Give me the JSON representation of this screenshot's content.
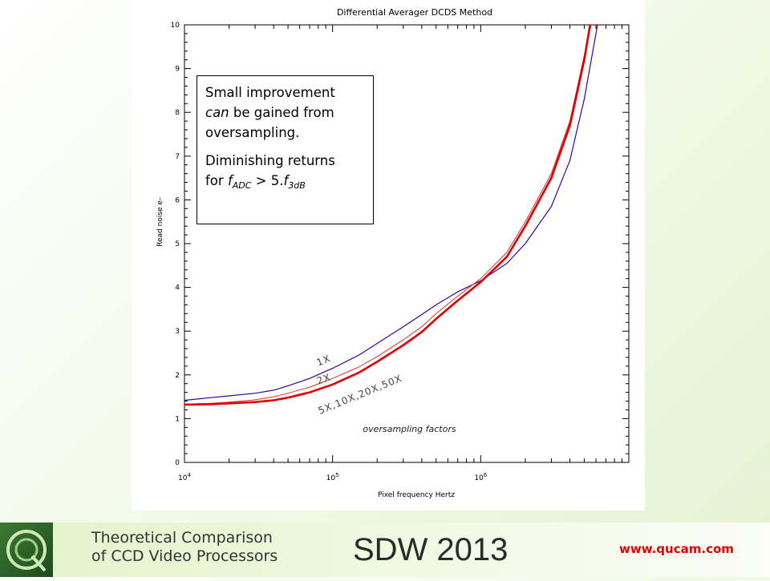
{
  "chart_data": {
    "type": "line",
    "title": "Differential Averager DCDS Method",
    "xlabel": "Pixel frequency Hertz",
    "ylabel": "Read noise e–",
    "x_scale": "log",
    "xlim": [
      10000,
      10000000
    ],
    "ylim": [
      0,
      10
    ],
    "x_ticks": [
      {
        "value": 10000,
        "base": "10",
        "exp": "4"
      },
      {
        "value": 100000,
        "base": "10",
        "exp": "5"
      },
      {
        "value": 1000000,
        "base": "10",
        "exp": "6"
      }
    ],
    "y_ticks": [
      "0",
      "1",
      "2",
      "3",
      "4",
      "5",
      "6",
      "7",
      "8",
      "9",
      "10"
    ],
    "grid": false,
    "series": [
      {
        "name": "1X",
        "color": "#3a00a0",
        "x": [
          10000,
          15000,
          20000,
          30000,
          40000,
          50000,
          70000,
          100000,
          150000,
          200000,
          300000,
          400000,
          500000,
          700000,
          1000000,
          1500000,
          2000000,
          3000000,
          4000000,
          5000000,
          6000000,
          6500000
        ],
        "y": [
          1.42,
          1.48,
          1.52,
          1.58,
          1.65,
          1.75,
          1.92,
          2.15,
          2.45,
          2.72,
          3.1,
          3.38,
          3.6,
          3.9,
          4.15,
          4.55,
          5.0,
          5.85,
          6.9,
          8.3,
          9.8,
          10.5
        ]
      },
      {
        "name": "2X",
        "color": "#e03030",
        "x": [
          10000,
          15000,
          20000,
          30000,
          40000,
          50000,
          70000,
          100000,
          150000,
          200000,
          300000,
          400000,
          500000,
          700000,
          1000000,
          1500000,
          2000000,
          3000000,
          4000000,
          5000000,
          6000000
        ],
        "y": [
          1.33,
          1.35,
          1.38,
          1.43,
          1.5,
          1.58,
          1.72,
          1.92,
          2.18,
          2.42,
          2.8,
          3.1,
          3.4,
          3.8,
          4.2,
          4.8,
          5.5,
          6.6,
          7.8,
          9.3,
          10.5
        ]
      },
      {
        "name": "5X,10X,20X,50X",
        "color": "#dd0000",
        "x": [
          10000,
          15000,
          20000,
          30000,
          40000,
          50000,
          70000,
          100000,
          150000,
          200000,
          300000,
          400000,
          500000,
          700000,
          1000000,
          1500000,
          2000000,
          3000000,
          4000000,
          5000000,
          5800000
        ],
        "y": [
          1.32,
          1.33,
          1.35,
          1.38,
          1.42,
          1.48,
          1.6,
          1.78,
          2.05,
          2.3,
          2.68,
          2.98,
          3.28,
          3.7,
          4.12,
          4.7,
          5.4,
          6.5,
          7.7,
          9.2,
          10.5
        ]
      }
    ],
    "series_labels": [
      "1X",
      "2X",
      "5X,10X,20X,50X"
    ],
    "annotation": "oversampling factors"
  },
  "callout": {
    "line1": "Small improvement",
    "line2_italic": "can",
    "line2_rest": " be gained from",
    "line3": "oversampling.",
    "line4": "Diminishing returns",
    "line5_pre": "for ",
    "line5_f1": "f",
    "line5_sub1": "ADC",
    "line5_mid": " > 5.",
    "line5_f2": "f",
    "line5_sub2": "3dB"
  },
  "footer": {
    "subtitle_line1": "Theoretical Comparison",
    "subtitle_line2": "of CCD Video Processors",
    "title": "SDW 2013",
    "url": "www.qucam.com"
  }
}
